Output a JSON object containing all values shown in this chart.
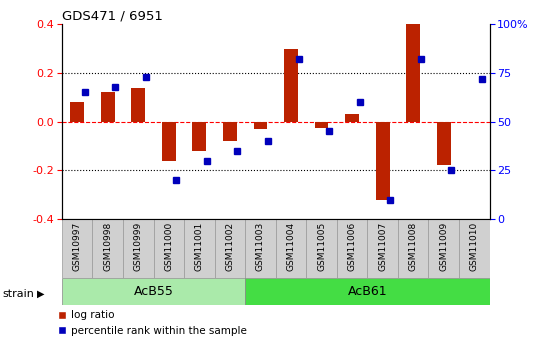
{
  "title": "GDS471 / 6951",
  "samples": [
    "GSM10997",
    "GSM10998",
    "GSM10999",
    "GSM11000",
    "GSM11001",
    "GSM11002",
    "GSM11003",
    "GSM11004",
    "GSM11005",
    "GSM11006",
    "GSM11007",
    "GSM11008",
    "GSM11009",
    "GSM11010"
  ],
  "log_ratio": [
    0.08,
    0.12,
    0.14,
    -0.16,
    -0.12,
    -0.08,
    -0.03,
    0.3,
    -0.025,
    0.03,
    -0.32,
    0.4,
    -0.18,
    0.0
  ],
  "percentile_rank": [
    65,
    68,
    73,
    20,
    30,
    35,
    40,
    82,
    45,
    60,
    10,
    82,
    25,
    72
  ],
  "groups": [
    {
      "label": "AcB55",
      "start": 0,
      "end": 5,
      "color": "#aaeaaa"
    },
    {
      "label": "AcB61",
      "start": 6,
      "end": 13,
      "color": "#44dd44"
    }
  ],
  "ylim": [
    -0.4,
    0.4
  ],
  "y2lim": [
    0,
    100
  ],
  "yticks": [
    -0.4,
    -0.2,
    0.0,
    0.2,
    0.4
  ],
  "y2ticks": [
    0,
    25,
    50,
    75,
    100
  ],
  "dotted_lines": [
    0.2,
    -0.2
  ],
  "bar_color": "#bb2200",
  "dot_color": "#0000bb",
  "background_color": "#ffffff",
  "strain_label": "strain",
  "legend_items": [
    "log ratio",
    "percentile rank within the sample"
  ]
}
